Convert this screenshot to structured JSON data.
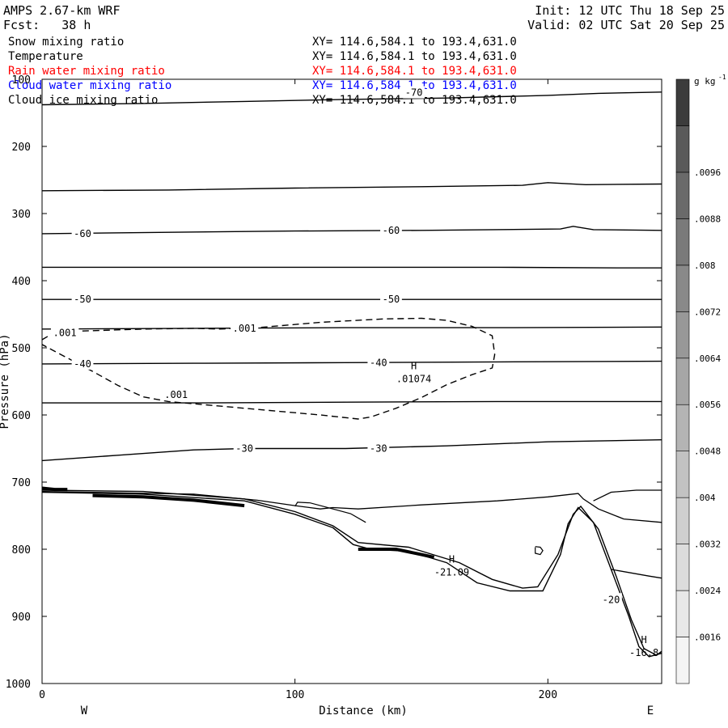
{
  "header": {
    "model": "AMPS 2.67-km WRF",
    "fcst_label": "Fcst:",
    "fcst_value": "38 h",
    "init": "Init: 12 UTC Thu 18 Sep 25",
    "valid": "Valid: 02 UTC Sat 20 Sep 25"
  },
  "fields": [
    {
      "name": "Snow mixing ratio",
      "xy": "XY= 114.6,584.1 to 193.4,631.0",
      "color": "#000000"
    },
    {
      "name": "Temperature",
      "xy": "XY= 114.6,584.1 to 193.4,631.0",
      "color": "#000000"
    },
    {
      "name": "Rain water mixing ratio",
      "xy": "XY= 114.6,584.1 to 193.4,631.0",
      "color": "#ff0000"
    },
    {
      "name": "Cloud water mixing ratio",
      "xy": "XY= 114.6,584.1 to 193.4,631.0",
      "color": "#0000ff"
    },
    {
      "name": "Cloud ice mixing ratio",
      "xy": "XY= 114.6,584.1 to 193.4,631.0",
      "color": "#000000"
    }
  ],
  "chart_data": {
    "type": "contour-cross-section",
    "xlabel": "Distance (km)",
    "ylabel": "Pressure (hPa)",
    "xlim": [
      0,
      245
    ],
    "ylim": [
      1000,
      100
    ],
    "x_ticks": [
      0,
      100,
      200
    ],
    "y_ticks": [
      100,
      200,
      300,
      400,
      500,
      600,
      700,
      800,
      900,
      1000
    ],
    "x_end_labels": {
      "left": "W",
      "right": "E"
    },
    "colorbar": {
      "unit": "g kg",
      "unit_exp": "-1",
      "levels": [
        "0.0016",
        "0.0024",
        "0.0032",
        "0.004",
        "0.0048",
        "0.0056",
        "0.0064",
        "0.0072",
        "0.008",
        "0.0088",
        "0.0096"
      ],
      "labels": [
        ".0016",
        ".0024",
        ".0032",
        ".004",
        ".0048",
        ".0056",
        ".0064",
        ".0072",
        ".008",
        ".0088",
        ".0096"
      ],
      "colors": [
        "#f4f4f4",
        "#e8e8e8",
        "#dcdcdc",
        "#cfcfcf",
        "#c2c2c2",
        "#b4b4b4",
        "#a6a6a6",
        "#989898",
        "#898989",
        "#7a7a7a",
        "#6a6a6a",
        "#5a5a5a",
        "#3c3c3c"
      ]
    },
    "temperature_contours": [
      {
        "label": "-70",
        "points": [
          [
            0,
            138
          ],
          [
            40,
            136
          ],
          [
            80,
            133
          ],
          [
            120,
            130
          ],
          [
            160,
            128
          ],
          [
            200,
            124
          ],
          [
            220,
            121
          ],
          [
            245,
            119
          ]
        ]
      },
      {
        "label": "",
        "points": [
          [
            0,
            266
          ],
          [
            50,
            265
          ],
          [
            100,
            262
          ],
          [
            150,
            260
          ],
          [
            190,
            258
          ],
          [
            200,
            254
          ],
          [
            215,
            257
          ],
          [
            245,
            256
          ]
        ]
      },
      {
        "label": "-60",
        "points": [
          [
            0,
            330
          ],
          [
            50,
            328
          ],
          [
            100,
            326
          ],
          [
            150,
            325
          ],
          [
            205,
            323
          ],
          [
            210,
            319
          ],
          [
            218,
            324
          ],
          [
            245,
            325
          ]
        ]
      },
      {
        "label": "",
        "points": [
          [
            0,
            380
          ],
          [
            60,
            380
          ],
          [
            120,
            380
          ],
          [
            180,
            380
          ],
          [
            230,
            381
          ],
          [
            245,
            381
          ]
        ]
      },
      {
        "label": "-50",
        "points": [
          [
            0,
            428
          ],
          [
            60,
            428
          ],
          [
            120,
            428
          ],
          [
            180,
            428
          ],
          [
            245,
            428
          ]
        ]
      },
      {
        "label": "",
        "points": [
          [
            0,
            472
          ],
          [
            60,
            471
          ],
          [
            120,
            470
          ],
          [
            180,
            470
          ],
          [
            245,
            469
          ]
        ]
      },
      {
        "label": "-40",
        "points": [
          [
            0,
            524
          ],
          [
            60,
            523
          ],
          [
            120,
            522
          ],
          [
            180,
            521
          ],
          [
            245,
            520
          ]
        ]
      },
      {
        "label": "",
        "points": [
          [
            0,
            582
          ],
          [
            60,
            582
          ],
          [
            120,
            581
          ],
          [
            180,
            580
          ],
          [
            245,
            580
          ]
        ]
      },
      {
        "label": "-30",
        "points": [
          [
            0,
            668
          ],
          [
            30,
            660
          ],
          [
            60,
            652
          ],
          [
            80,
            650
          ],
          [
            120,
            650
          ],
          [
            160,
            646
          ],
          [
            200,
            640
          ],
          [
            245,
            637
          ]
        ]
      }
    ],
    "temperature_labels": [
      {
        "text": "-70",
        "x": 147,
        "p": 120
      },
      {
        "text": "-60",
        "x": 16,
        "p": 330
      },
      {
        "text": "-60",
        "x": 138,
        "p": 325
      },
      {
        "text": "-50",
        "x": 16,
        "p": 428
      },
      {
        "text": "-50",
        "x": 138,
        "p": 428
      },
      {
        "text": "-40",
        "x": 16,
        "p": 524
      },
      {
        "text": "-40",
        "x": 133,
        "p": 522
      },
      {
        "text": "-30",
        "x": 80,
        "p": 650
      },
      {
        "text": "-30",
        "x": 133,
        "p": 650
      },
      {
        "text": "-20",
        "x": 225,
        "p": 875
      }
    ],
    "ice_contour": {
      "label": ".001",
      "points": [
        [
          0,
          488
        ],
        [
          4,
          479
        ],
        [
          15,
          475
        ],
        [
          40,
          472
        ],
        [
          60,
          471
        ],
        [
          70,
          472
        ],
        [
          85,
          470
        ],
        [
          110,
          462
        ],
        [
          135,
          457
        ],
        [
          150,
          456
        ],
        [
          160,
          459
        ],
        [
          170,
          468
        ],
        [
          178,
          482
        ],
        [
          179,
          510
        ],
        [
          178,
          530
        ],
        [
          170,
          540
        ],
        [
          160,
          555
        ],
        [
          150,
          574
        ],
        [
          140,
          590
        ],
        [
          130,
          603
        ],
        [
          125,
          606
        ],
        [
          110,
          600
        ],
        [
          80,
          590
        ],
        [
          50,
          580
        ],
        [
          40,
          573
        ],
        [
          30,
          556
        ],
        [
          20,
          535
        ],
        [
          5,
          505
        ],
        [
          0,
          495
        ]
      ]
    },
    "ice_labels": [
      {
        "text": ".001",
        "x": 9,
        "p": 478
      },
      {
        "text": ".001",
        "x": 80,
        "p": 471
      },
      {
        "text": ".001",
        "x": 53,
        "p": 570
      }
    ],
    "highs": [
      {
        "text": "H",
        "value": ".01074",
        "x": 147,
        "p": 532
      },
      {
        "text": "H",
        "value": "-21.09",
        "x": 162,
        "p": 820
      },
      {
        "text": "H",
        "value": "-16.8",
        "x": 238,
        "p": 940
      }
    ],
    "terrain_lines": [
      [
        [
          0,
          715
        ],
        [
          40,
          718
        ],
        [
          80,
          728
        ],
        [
          100,
          748
        ],
        [
          115,
          768
        ],
        [
          123,
          793
        ],
        [
          130,
          800
        ],
        [
          145,
          803
        ],
        [
          160,
          820
        ],
        [
          172,
          850
        ],
        [
          185,
          862
        ],
        [
          198,
          862
        ],
        [
          205,
          808
        ],
        [
          208,
          762
        ],
        [
          212,
          738
        ],
        [
          218,
          760
        ],
        [
          225,
          830
        ],
        [
          232,
          900
        ],
        [
          236,
          945
        ],
        [
          240,
          960
        ],
        [
          245,
          955
        ]
      ],
      [
        [
          0,
          712
        ],
        [
          40,
          714
        ],
        [
          80,
          725
        ],
        [
          100,
          744
        ],
        [
          115,
          765
        ],
        [
          125,
          790
        ],
        [
          145,
          797
        ],
        [
          165,
          820
        ],
        [
          178,
          845
        ],
        [
          190,
          858
        ],
        [
          196,
          856
        ],
        [
          204,
          808
        ],
        [
          210,
          748
        ],
        [
          213,
          736
        ],
        [
          220,
          770
        ],
        [
          227,
          840
        ],
        [
          233,
          905
        ],
        [
          238,
          948
        ],
        [
          243,
          958
        ],
        [
          245,
          952
        ]
      ]
    ],
    "near_surface_contour": [
      [
        0,
        714
      ],
      [
        60,
        718
      ],
      [
        85,
        727
      ],
      [
        100,
        735
      ],
      [
        110,
        740
      ],
      [
        115,
        738
      ],
      [
        125,
        740
      ],
      [
        150,
        734
      ],
      [
        180,
        728
      ],
      [
        200,
        722
      ],
      [
        212,
        717
      ],
      [
        214,
        725
      ],
      [
        220,
        740
      ],
      [
        230,
        755
      ],
      [
        245,
        760
      ]
    ],
    "pocket_contour": [
      [
        100,
        736
      ],
      [
        101,
        730
      ],
      [
        106,
        731
      ],
      [
        115,
        740
      ],
      [
        122,
        747
      ],
      [
        128,
        760
      ]
    ],
    "small_loop": [
      [
        195,
        796
      ],
      [
        197,
        797
      ],
      [
        198,
        802
      ],
      [
        197,
        808
      ],
      [
        195,
        806
      ],
      [
        195,
        797
      ]
    ],
    "terrain_tail": [
      [
        218,
        728
      ],
      [
        225,
        715
      ],
      [
        235,
        712
      ],
      [
        245,
        712
      ]
    ],
    "terrain_right": [
      [
        225,
        830
      ],
      [
        240,
        840
      ],
      [
        245,
        843
      ]
    ],
    "bold_segments": [
      [
        [
          0,
          709
        ],
        [
          5,
          711
        ],
        [
          10,
          711
        ]
      ],
      [
        [
          20,
          720
        ],
        [
          40,
          722
        ],
        [
          60,
          727
        ],
        [
          80,
          735
        ]
      ],
      [
        [
          125,
          800
        ],
        [
          140,
          800
        ],
        [
          150,
          808
        ],
        [
          155,
          812
        ]
      ]
    ]
  }
}
